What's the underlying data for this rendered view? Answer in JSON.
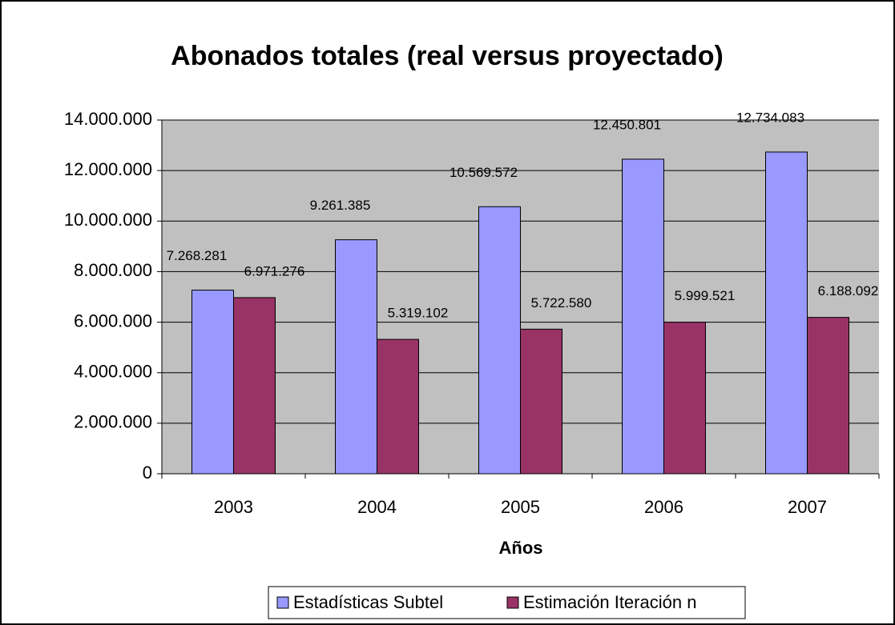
{
  "chart_data": {
    "type": "bar",
    "title": "Abonados totales (real versus proyectado)",
    "x_label": "Años",
    "categories": [
      "2003",
      "2004",
      "2005",
      "2006",
      "2007"
    ],
    "series": [
      {
        "name": "Estadísticas Subtel",
        "color": "#9999ff",
        "values": [
          7268281,
          9261385,
          10569572,
          12450801,
          12734083
        ],
        "value_labels": [
          "7.268.281",
          "9.261.385",
          "10.569.572",
          "12.450.801",
          "12.734.083"
        ]
      },
      {
        "name": "Estimación Iteración n",
        "color": "#993366",
        "values": [
          6971276,
          5319102,
          5722580,
          5999521,
          6188092
        ],
        "value_labels": [
          "6.971.276",
          "5.319.102",
          "5.722.580",
          "5.999.521",
          "6.188.092"
        ]
      }
    ],
    "ylim": [
      0,
      14000000
    ],
    "yticks": [
      0,
      {
        "value": 2000000,
        "label": "2.000.000"
      },
      {
        "value": 4000000,
        "label": "4.000.000"
      },
      {
        "value": 6000000,
        "label": "6.000.000"
      },
      {
        "value": 8000000,
        "label": "8.000.000"
      },
      {
        "value": 10000000,
        "label": "10.000.000"
      },
      {
        "value": 12000000,
        "label": "12.000.000"
      },
      {
        "value": 14000000,
        "label": "14.000.000"
      }
    ],
    "grid": true,
    "plot_background": "#c0c0c0",
    "legend": "bottom"
  }
}
